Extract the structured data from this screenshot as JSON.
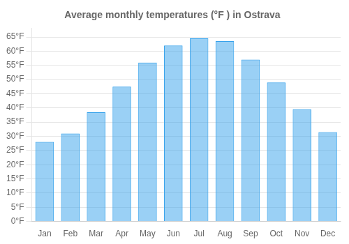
{
  "chart_data": {
    "type": "bar",
    "title": "Average monthly temperatures (°F ) in Ostrava",
    "categories": [
      "Jan",
      "Feb",
      "Mar",
      "Apr",
      "May",
      "Jun",
      "Jul",
      "Aug",
      "Sep",
      "Oct",
      "Nov",
      "Dec"
    ],
    "values": [
      28,
      31,
      38.5,
      47.5,
      56,
      62,
      64.5,
      63.5,
      57,
      49,
      39.5,
      31.5
    ],
    "ylim": [
      0,
      68
    ],
    "yticks": [
      {
        "value": 0,
        "label": "0°F"
      },
      {
        "value": 5,
        "label": "5°F"
      },
      {
        "value": 10,
        "label": "10°F"
      },
      {
        "value": 15,
        "label": "15°F"
      },
      {
        "value": 20,
        "label": "20°F"
      },
      {
        "value": 25,
        "label": "25°F"
      },
      {
        "value": 30,
        "label": "30°F"
      },
      {
        "value": 35,
        "label": "35°F"
      },
      {
        "value": 40,
        "label": "40°F"
      },
      {
        "value": 45,
        "label": "45°F"
      },
      {
        "value": 50,
        "label": "50°F"
      },
      {
        "value": 55,
        "label": "55°F"
      },
      {
        "value": 60,
        "label": "60°F"
      },
      {
        "value": 65,
        "label": "65°F"
      }
    ],
    "grid": true
  }
}
